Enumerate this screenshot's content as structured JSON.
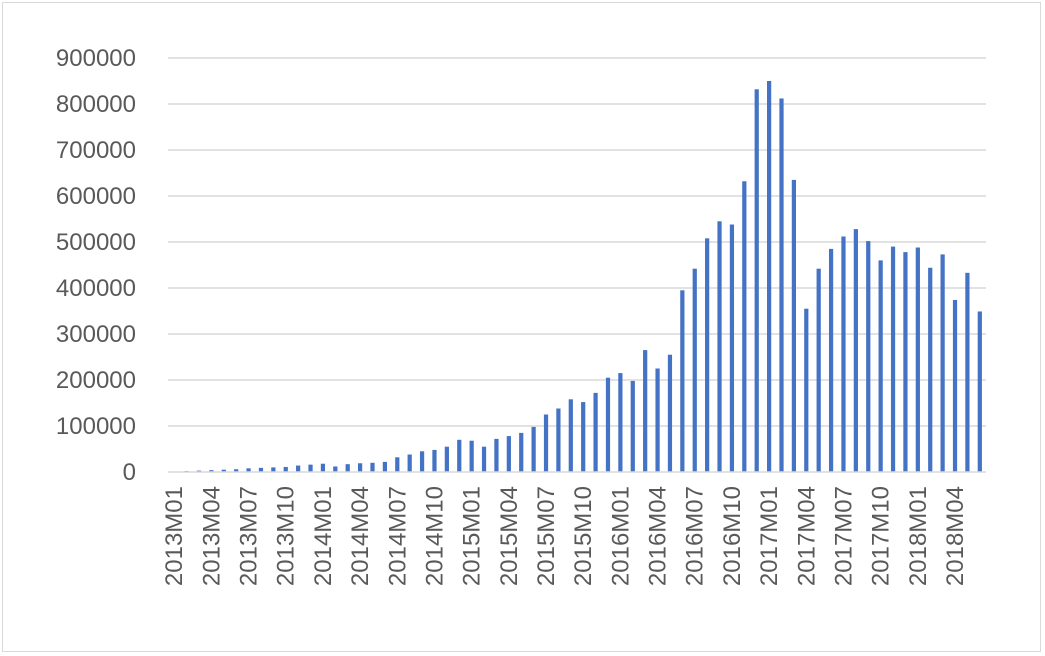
{
  "chart_data": {
    "type": "bar",
    "title": "",
    "xlabel": "",
    "ylabel": "",
    "ylim": [
      0,
      900000
    ],
    "yticks": [
      0,
      100000,
      200000,
      300000,
      400000,
      500000,
      600000,
      700000,
      800000,
      900000
    ],
    "grid": true,
    "legend": "none",
    "bar_color": "#4472c4",
    "grid_color": "#d9d9d9",
    "categories": [
      "2013M01",
      "2013M02",
      "2013M03",
      "2013M04",
      "2013M05",
      "2013M06",
      "2013M07",
      "2013M08",
      "2013M09",
      "2013M10",
      "2013M11",
      "2013M12",
      "2014M01",
      "2014M02",
      "2014M03",
      "2014M04",
      "2014M05",
      "2014M06",
      "2014M07",
      "2014M08",
      "2014M09",
      "2014M10",
      "2014M11",
      "2014M12",
      "2015M01",
      "2015M02",
      "2015M03",
      "2015M04",
      "2015M05",
      "2015M06",
      "2015M07",
      "2015M08",
      "2015M09",
      "2015M10",
      "2015M11",
      "2015M12",
      "2016M01",
      "2016M02",
      "2016M03",
      "2016M04",
      "2016M05",
      "2016M06",
      "2016M07",
      "2016M08",
      "2016M09",
      "2016M10",
      "2016M11",
      "2016M12",
      "2017M01",
      "2017M02",
      "2017M03",
      "2017M04",
      "2017M05",
      "2017M06",
      "2017M07",
      "2017M08",
      "2017M09",
      "2017M10",
      "2017M11",
      "2017M12",
      "2018M01",
      "2018M02",
      "2018M03",
      "2018M04",
      "2018M05",
      "2018M06"
    ],
    "x_tick_labels": [
      "2013M01",
      "2013M04",
      "2013M07",
      "2013M10",
      "2014M01",
      "2014M04",
      "2014M07",
      "2014M10",
      "2015M01",
      "2015M04",
      "2015M07",
      "2015M10",
      "2016M01",
      "2016M04",
      "2016M07",
      "2016M10",
      "2017M01",
      "2017M04",
      "2017M07",
      "2017M10",
      "2018M01",
      "2018M04"
    ],
    "values": [
      1000,
      2000,
      3000,
      4000,
      5000,
      6000,
      8000,
      9000,
      10000,
      11000,
      14000,
      16000,
      18000,
      12000,
      17000,
      19000,
      20000,
      22000,
      32000,
      38000,
      45000,
      48000,
      55000,
      70000,
      68000,
      55000,
      72000,
      78000,
      85000,
      98000,
      125000,
      138000,
      158000,
      152000,
      172000,
      205000,
      215000,
      198000,
      265000,
      225000,
      255000,
      395000,
      442000,
      508000,
      545000,
      538000,
      632000,
      832000,
      850000,
      812000,
      635000,
      355000,
      442000,
      485000,
      512000,
      528000,
      502000,
      460000,
      490000,
      478000,
      488000,
      444000,
      473000,
      374000,
      433000,
      349000
    ]
  }
}
